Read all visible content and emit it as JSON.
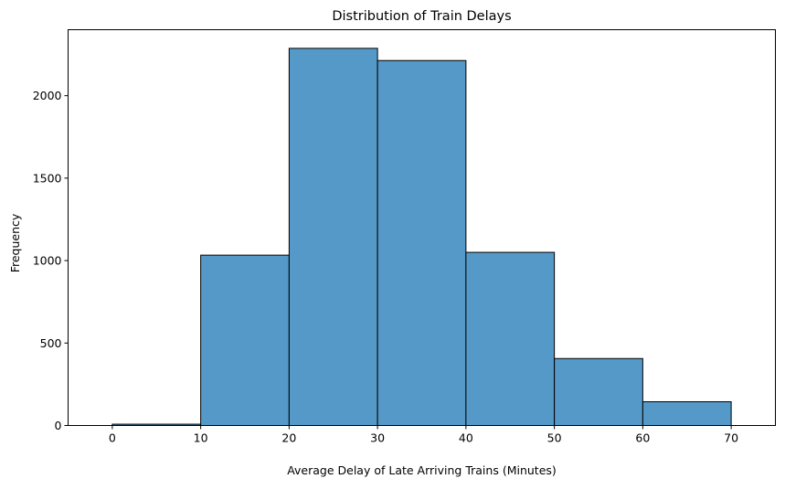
{
  "chart_data": {
    "type": "bar",
    "title": "Distribution of Train Delays",
    "xlabel": "Average Delay of Late Arriving Trains (Minutes)",
    "ylabel": "Frequency",
    "bins": [
      [
        0,
        10
      ],
      [
        10,
        20
      ],
      [
        20,
        30
      ],
      [
        30,
        40
      ],
      [
        40,
        50
      ],
      [
        50,
        60
      ],
      [
        60,
        70
      ]
    ],
    "values": [
      8,
      1033,
      2287,
      2213,
      1050,
      406,
      144
    ],
    "xlim": [
      -5,
      75
    ],
    "ylim": [
      0,
      2400
    ],
    "xticks": [
      0,
      10,
      20,
      30,
      40,
      50,
      60,
      70
    ],
    "yticks": [
      0,
      500,
      1000,
      1500,
      2000
    ],
    "bar_color": "#5599c8",
    "edge_color": "#000000",
    "grid": false,
    "legend": "none"
  }
}
